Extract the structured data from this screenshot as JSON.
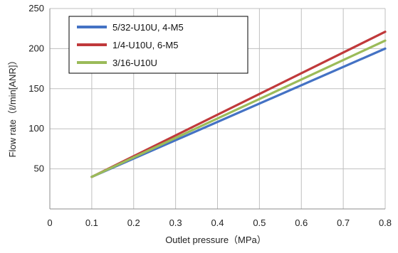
{
  "chart_data": {
    "type": "line",
    "xlabel": "Outlet pressure（MPa）",
    "ylabel": "Flow rate（ℓ/min[ANR]）",
    "xlim": [
      0,
      0.8
    ],
    "ylim": [
      0,
      250
    ],
    "x_ticks": [
      "0",
      "0.1",
      "0.2",
      "0.3",
      "0.4",
      "0.5",
      "0.6",
      "0.7",
      "0.8"
    ],
    "y_ticks": [
      "50",
      "100",
      "150",
      "200",
      "250"
    ],
    "x_tick_values": [
      0,
      0.1,
      0.2,
      0.3,
      0.4,
      0.5,
      0.6,
      0.7,
      0.8
    ],
    "y_tick_values": [
      50,
      100,
      150,
      200,
      250
    ],
    "grid": true,
    "legend_position": "top-left",
    "series": [
      {
        "name": "5/32-U10U,  4-M5",
        "color": "#4472c4",
        "x": [
          0.1,
          0.8
        ],
        "y": [
          40,
          200
        ]
      },
      {
        "name": "1/4-U10U,  6-M5",
        "color": "#c0393b",
        "x": [
          0.1,
          0.8
        ],
        "y": [
          40,
          221
        ]
      },
      {
        "name": "3/16-U10U",
        "color": "#9bbb59",
        "x": [
          0.1,
          0.8
        ],
        "y": [
          40,
          210
        ]
      }
    ]
  }
}
